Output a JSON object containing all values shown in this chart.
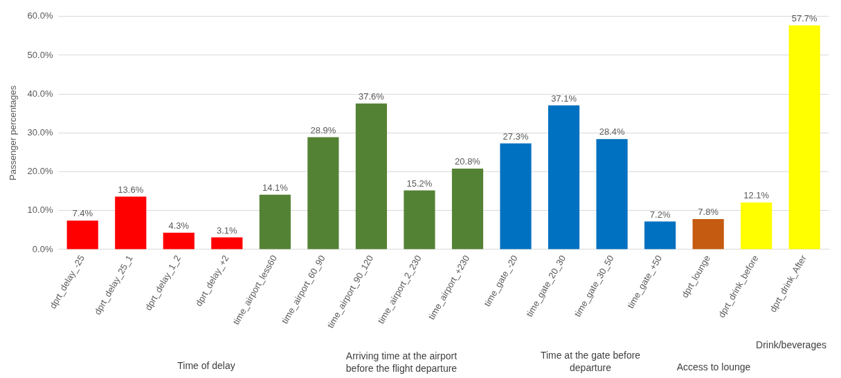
{
  "chart_data": {
    "type": "bar",
    "ylabel": "Passenger percentages",
    "categories": [
      "dprt_delay_-25",
      "dprt_delay_25_1",
      "dprt_delay_1_2",
      "dprt_delay_+2",
      "time_airport_less60",
      "time_airport_60_90",
      "time_airport_90_120",
      "time_airport_2_230",
      "time_airport_+230",
      "time_gate_-20",
      "time_gate_20_30",
      "time_gate_30_50",
      "time_gate_+50",
      "dprt_lounge",
      "dprt_drink_before",
      "dprt_drink_After"
    ],
    "values": [
      7.4,
      13.6,
      4.3,
      3.1,
      14.1,
      28.9,
      37.6,
      15.2,
      20.8,
      27.3,
      37.1,
      28.4,
      7.2,
      7.8,
      12.1,
      57.7
    ],
    "value_labels": [
      "7.4%",
      "13.6%",
      "4.3%",
      "3.1%",
      "14.1%",
      "28.9%",
      "37.6%",
      "15.2%",
      "20.8%",
      "27.3%",
      "37.1%",
      "28.4%",
      "7.2%",
      "7.8%",
      "12.1%",
      "57.7%"
    ],
    "colors": [
      "#ff0000",
      "#ff0000",
      "#ff0000",
      "#ff0000",
      "#548235",
      "#548235",
      "#548235",
      "#548235",
      "#548235",
      "#0070c0",
      "#0070c0",
      "#0070c0",
      "#0070c0",
      "#c55a11",
      "#ffff00",
      "#ffff00"
    ],
    "ylim": [
      0,
      60
    ],
    "yticks": [
      {
        "value": 0,
        "label": "0.0%"
      },
      {
        "value": 10,
        "label": "10.0%"
      },
      {
        "value": 20,
        "label": "20.0%"
      },
      {
        "value": 30,
        "label": "30.0%"
      },
      {
        "value": 40,
        "label": "40.0%"
      },
      {
        "value": 50,
        "label": "50.0%"
      },
      {
        "value": 60,
        "label": "60.0%"
      }
    ],
    "grid": "y",
    "annotations": [
      "Time of delay",
      "Arriving time at the airport\nbefore the flight departure",
      "Time at the gate before\ndeparture",
      "Access to lounge",
      "Drink/beverages"
    ]
  }
}
